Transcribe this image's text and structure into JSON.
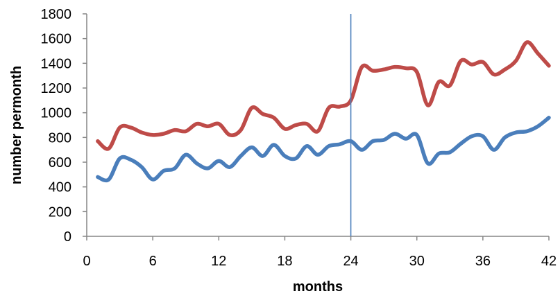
{
  "chart_data": {
    "type": "line",
    "title": "",
    "xlabel": "months",
    "ylabel": "number permonth",
    "xlim": [
      0,
      42
    ],
    "ylim": [
      0,
      1800
    ],
    "x_ticks": [
      "0",
      "6",
      "12",
      "18",
      "24",
      "30",
      "36",
      "42"
    ],
    "y_ticks": [
      "0",
      "200",
      "400",
      "600",
      "800",
      "1000",
      "1200",
      "1400",
      "1600",
      "1800"
    ],
    "grid": false,
    "legend": "none",
    "vertical_marker": {
      "x": 24,
      "color": "#4a7ebb"
    },
    "x": [
      1,
      2,
      3,
      4,
      5,
      6,
      7,
      8,
      9,
      10,
      11,
      12,
      13,
      14,
      15,
      16,
      17,
      18,
      19,
      20,
      21,
      22,
      23,
      24,
      25,
      26,
      27,
      28,
      29,
      30,
      31,
      32,
      33,
      34,
      35,
      36,
      37,
      38,
      39,
      40,
      41,
      42
    ],
    "series": [
      {
        "color": "#be4b48",
        "values": [
          770,
          710,
          880,
          880,
          840,
          820,
          830,
          860,
          850,
          910,
          890,
          910,
          820,
          860,
          1040,
          990,
          960,
          870,
          900,
          910,
          850,
          1040,
          1050,
          1100,
          1370,
          1340,
          1350,
          1370,
          1360,
          1330,
          1060,
          1250,
          1220,
          1420,
          1390,
          1410,
          1310,
          1350,
          1420,
          1570,
          1480,
          1380
        ]
      },
      {
        "color": "#4a7ebb",
        "values": [
          480,
          460,
          630,
          620,
          560,
          460,
          530,
          550,
          660,
          590,
          550,
          610,
          560,
          650,
          720,
          650,
          740,
          650,
          630,
          730,
          660,
          730,
          745,
          770,
          700,
          770,
          780,
          830,
          790,
          820,
          590,
          670,
          680,
          750,
          810,
          810,
          700,
          800,
          840,
          850,
          890,
          960
        ]
      }
    ]
  }
}
